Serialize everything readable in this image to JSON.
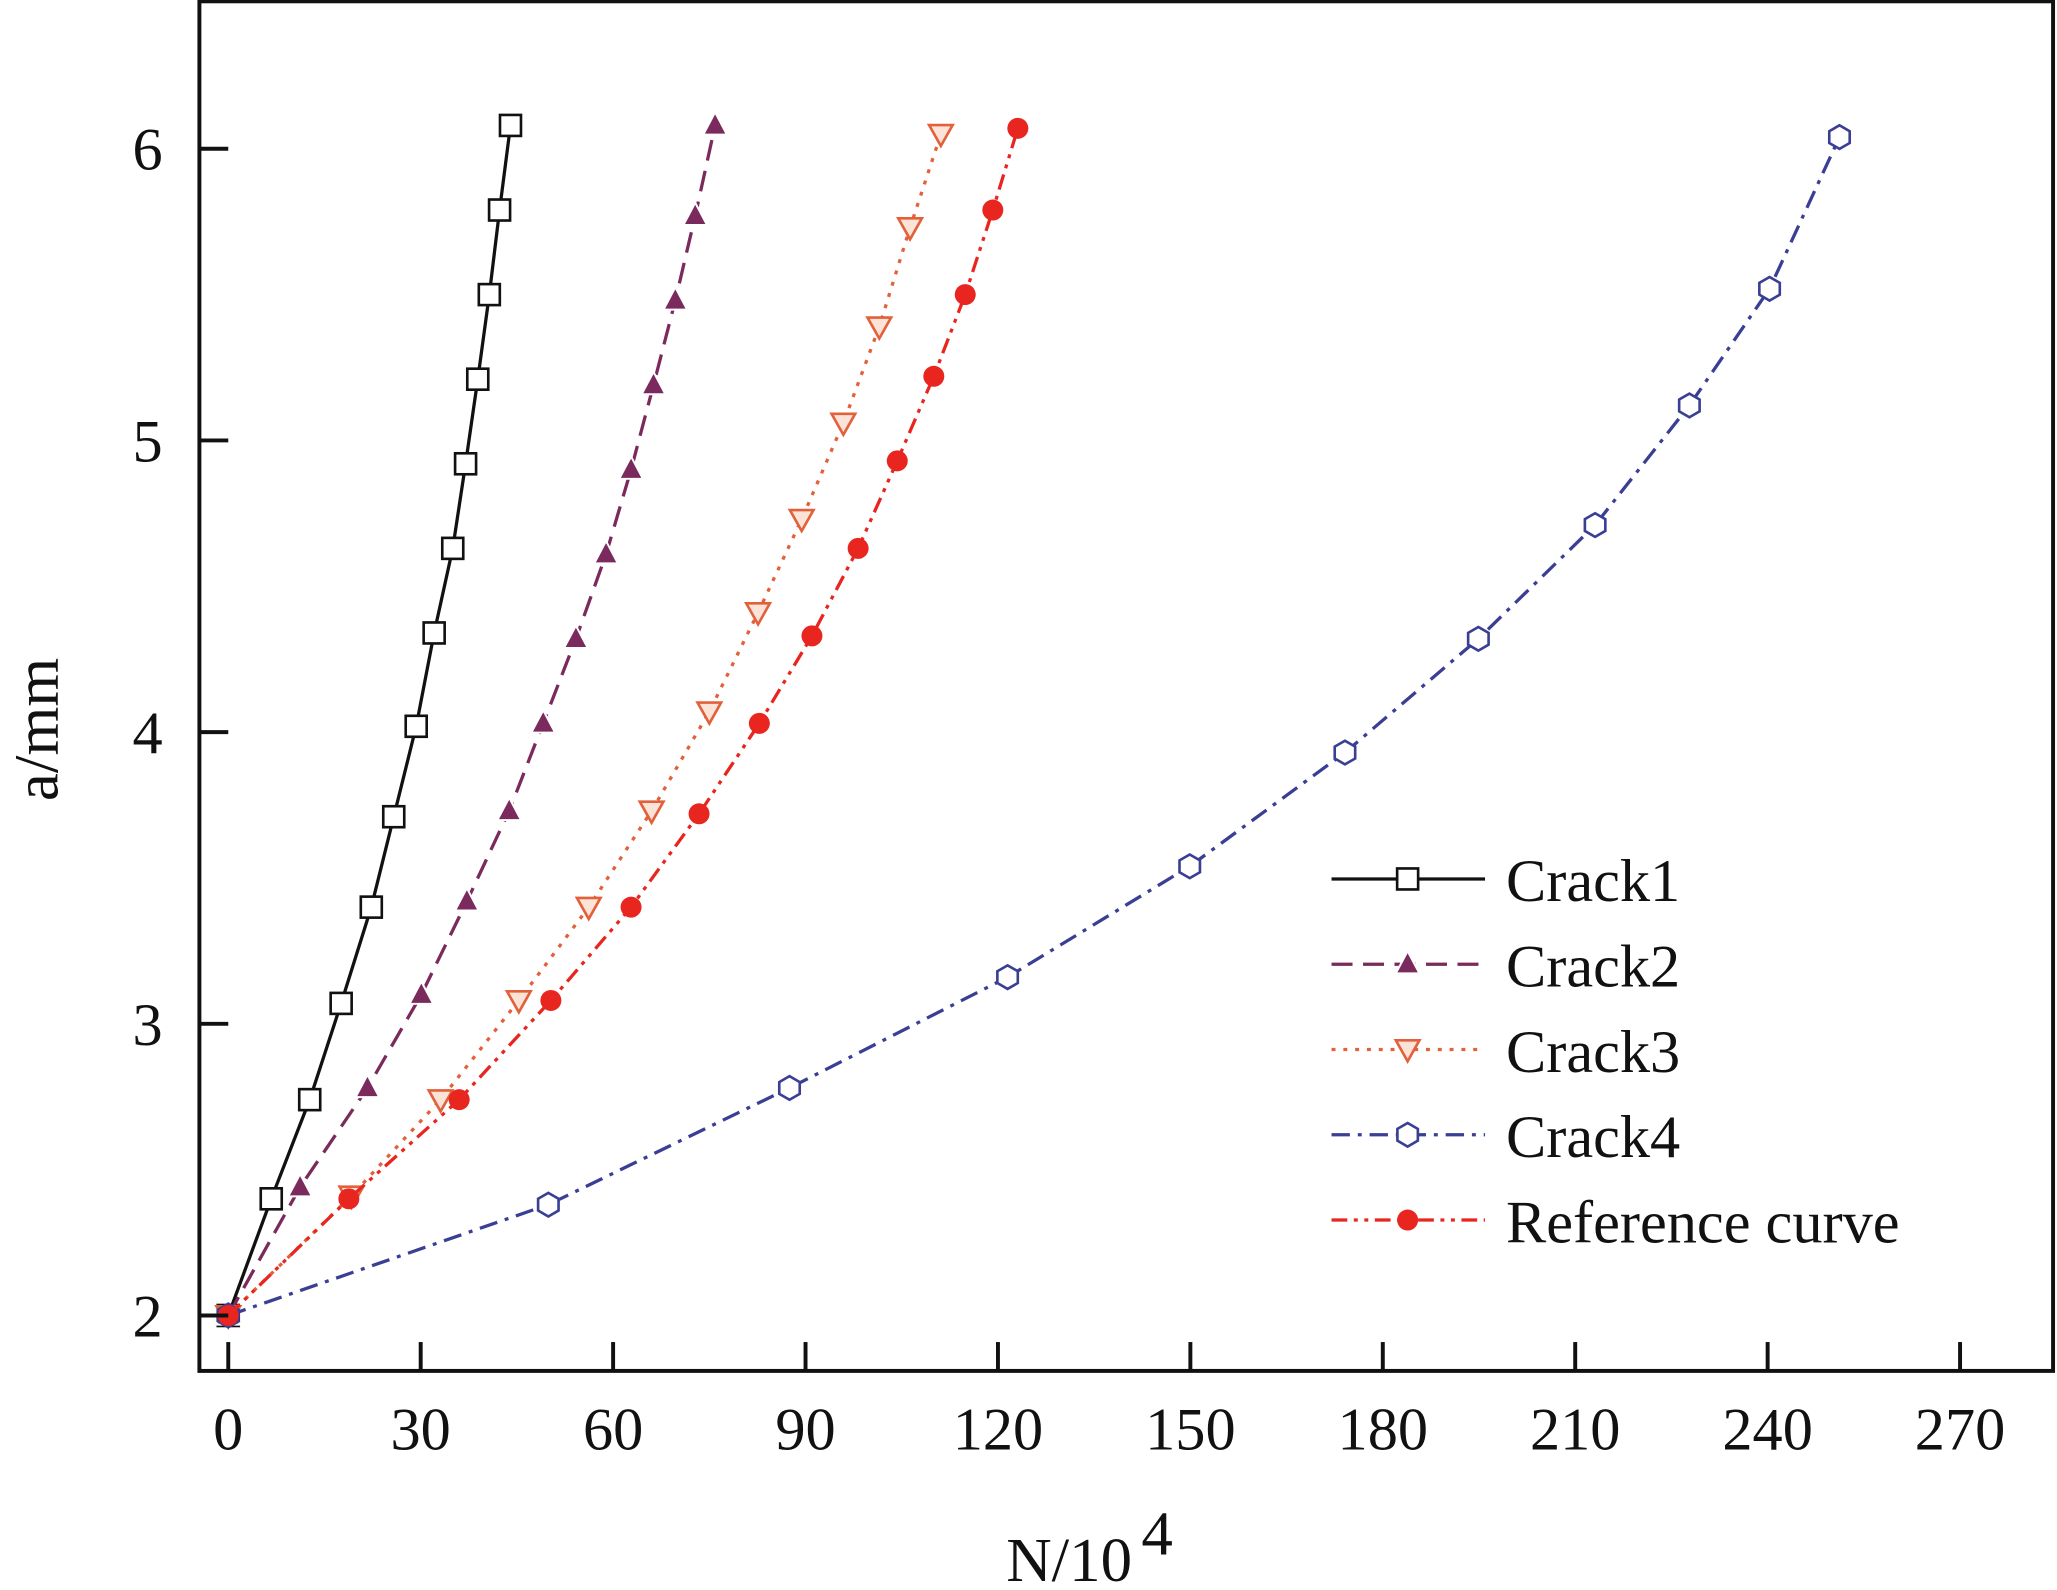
{
  "chart_data": {
    "type": "line",
    "title": "",
    "xlabel": "N/10",
    "xlabel_italic": "N",
    "xlabel_sup": "4",
    "ylabel": "a/mm",
    "ylabel_italic": "a",
    "xlim": [
      -4.5,
      284.5
    ],
    "ylim": [
      1.81,
      6.51
    ],
    "xticks": [
      0,
      30,
      60,
      90,
      120,
      150,
      180,
      210,
      240,
      270
    ],
    "yticks": [
      2,
      3,
      4,
      5,
      6
    ],
    "grid": false,
    "legend_position": "right-middle",
    "series": [
      {
        "name": "Crack1",
        "color": "#111111",
        "dash": "solid",
        "marker": "square-open",
        "x": [
          0,
          6.7,
          12.7,
          17.6,
          22.3,
          25.8,
          29.3,
          32.1,
          35.0,
          37.0,
          38.9,
          40.7,
          42.3,
          44.0
        ],
        "y": [
          2,
          2.4,
          2.74,
          3.07,
          3.4,
          3.71,
          4.02,
          4.34,
          4.63,
          4.92,
          5.21,
          5.5,
          5.79,
          6.08
        ]
      },
      {
        "name": "Crack2",
        "color": "#7a2a5c",
        "dash": "dashed",
        "marker": "triangle-up-filled",
        "x": [
          0,
          11.2,
          21.7,
          30.1,
          37.2,
          43.8,
          49.1,
          54.2,
          58.9,
          62.8,
          66.3,
          69.7,
          72.8,
          75.9
        ],
        "y": [
          2,
          2.44,
          2.78,
          3.1,
          3.42,
          3.73,
          4.03,
          4.32,
          4.61,
          4.9,
          5.19,
          5.48,
          5.77,
          6.08
        ]
      },
      {
        "name": "Crack3",
        "color": "#e2603a",
        "dash": "dotted",
        "marker": "triangle-down-open",
        "x": [
          0,
          19.2,
          33.1,
          45.3,
          56.2,
          66.0,
          75.0,
          82.6,
          89.4,
          95.9,
          101.5,
          106.3,
          111.1
        ],
        "y": [
          2,
          2.41,
          2.74,
          3.08,
          3.4,
          3.73,
          4.07,
          4.41,
          4.73,
          5.06,
          5.39,
          5.73,
          6.05
        ]
      },
      {
        "name": "Crack4",
        "color": "#3a3f94",
        "dash": "dash-dot",
        "marker": "hexagon-open",
        "x": [
          0,
          49.9,
          87.5,
          121.5,
          149.9,
          174.1,
          194.9,
          213.1,
          227.8,
          240.3,
          251.2
        ],
        "y": [
          2,
          2.38,
          2.78,
          3.16,
          3.54,
          3.93,
          4.32,
          4.71,
          5.12,
          5.52,
          6.04
        ]
      },
      {
        "name": "Reference curve",
        "color": "#e8251f",
        "dash": "dash-dot-dot",
        "marker": "circle-filled",
        "x": [
          0,
          18.8,
          36.0,
          50.3,
          62.8,
          73.4,
          82.8,
          91.0,
          98.2,
          104.3,
          110.0,
          114.9,
          119.2,
          123.1
        ],
        "y": [
          2,
          2.4,
          2.74,
          3.08,
          3.4,
          3.72,
          4.03,
          4.33,
          4.63,
          4.93,
          5.22,
          5.5,
          5.79,
          6.07
        ]
      }
    ]
  }
}
